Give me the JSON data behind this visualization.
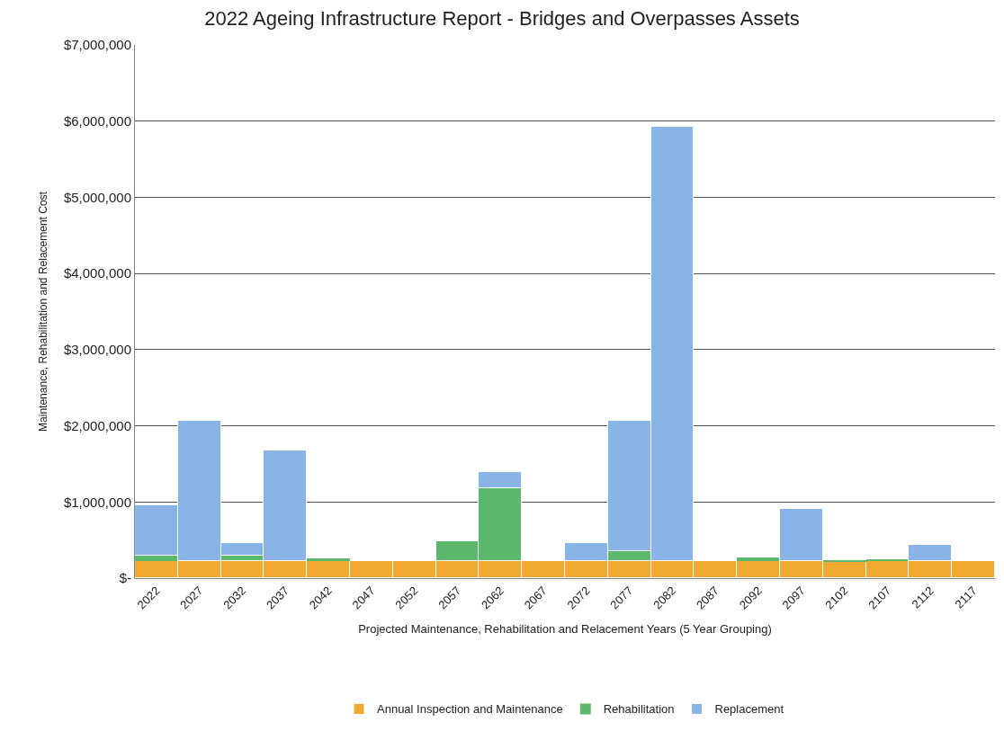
{
  "chart_data": {
    "type": "bar",
    "title": "2022 Ageing Infrastructure Report - Bridges and Overpasses Assets",
    "xlabel": "Projected Maintenance, Rehabilitation and Relacement Years (5 Year Grouping)",
    "ylabel": "Maintenance, Rehabilitation and Relacement Cost",
    "categories": [
      "2022",
      "2027",
      "2032",
      "2037",
      "2042",
      "2047",
      "2052",
      "2057",
      "2062",
      "2067",
      "2072",
      "2077",
      "2082",
      "2087",
      "2092",
      "2097",
      "2102",
      "2107",
      "2112",
      "2117"
    ],
    "stacked": true,
    "series": [
      {
        "name": "Annual Inspection and Maintenance",
        "color": "#f0a830",
        "values": [
          220000,
          220000,
          220000,
          220000,
          220000,
          220000,
          220000,
          220000,
          220000,
          220000,
          220000,
          220000,
          220000,
          220000,
          220000,
          220000,
          220000,
          220000,
          220000,
          220000
        ]
      },
      {
        "name": "Rehabilitation",
        "color": "#5cb86a",
        "values": [
          70000,
          0,
          80000,
          0,
          40000,
          0,
          0,
          260000,
          960000,
          0,
          0,
          140000,
          0,
          0,
          50000,
          0,
          20000,
          30000,
          0,
          0
        ]
      },
      {
        "name": "Replacement",
        "color": "#8ab4e6",
        "values": [
          670000,
          1850000,
          160000,
          1460000,
          0,
          0,
          0,
          0,
          210000,
          0,
          240000,
          1700000,
          5700000,
          0,
          0,
          690000,
          0,
          0,
          220000,
          0
        ]
      }
    ],
    "ylim": [
      0,
      7000000
    ],
    "yticks": [
      {
        "value": 0,
        "label": "$-"
      },
      {
        "value": 1000000,
        "label": "$1,000,000"
      },
      {
        "value": 2000000,
        "label": "$2,000,000"
      },
      {
        "value": 3000000,
        "label": "$3,000,000"
      },
      {
        "value": 4000000,
        "label": "$4,000,000"
      },
      {
        "value": 5000000,
        "label": "$5,000,000"
      },
      {
        "value": 6000000,
        "label": "$6,000,000"
      },
      {
        "value": 7000000,
        "label": "$7,000,000"
      }
    ],
    "grid": "y",
    "legend": "bottom"
  }
}
